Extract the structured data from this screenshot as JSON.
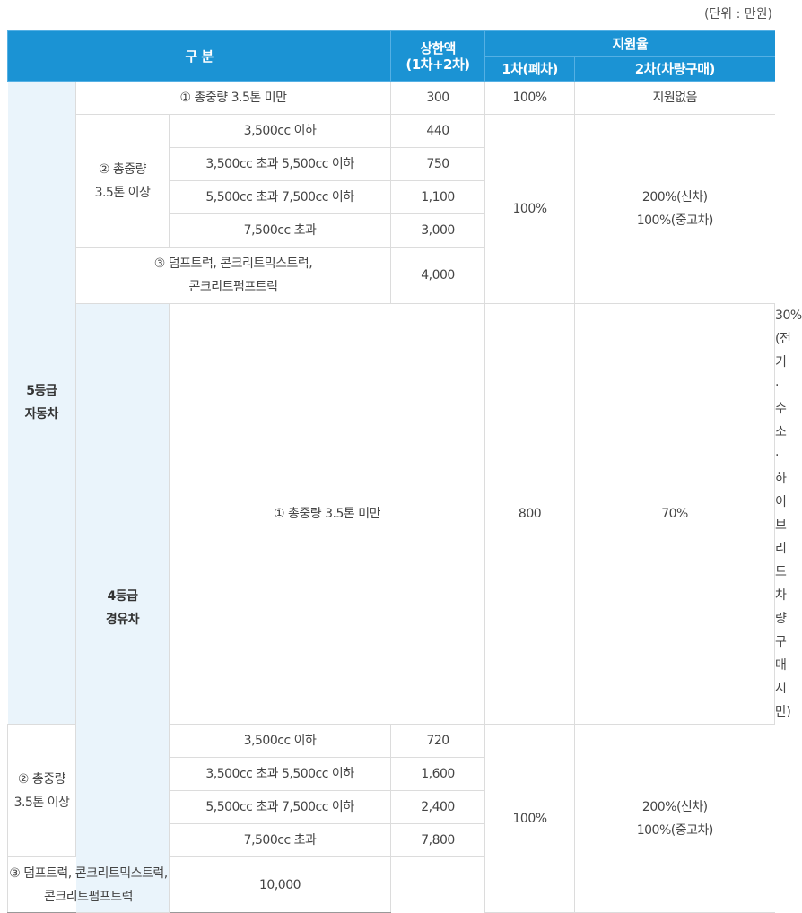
{
  "unit": "(단위 : 만원)",
  "header": {
    "category": "구 분",
    "limit": [
      "상한액",
      "(1차+2차)"
    ],
    "rate": "지원율",
    "rate_first": "1차(폐차)",
    "rate_second": "2차(차량구매)"
  },
  "groups": [
    {
      "grade": [
        "5등급",
        "자동차"
      ],
      "light": {
        "label": "① 총중량 3.5톤 미만",
        "limit": "300",
        "first": "100%",
        "second": [
          "지원없음"
        ]
      },
      "medium": {
        "label": [
          "② 총중량",
          "3.5톤 이상"
        ],
        "items": [
          {
            "displacement": "3,500cc 이하",
            "limit": "440"
          },
          {
            "displacement": "3,500cc 초과 5,500cc 이하",
            "limit": "750"
          },
          {
            "displacement": "5,500cc 초과 7,500cc 이하",
            "limit": "1,100"
          },
          {
            "displacement": "7,500cc 초과",
            "limit": "3,000"
          }
        ]
      },
      "special": {
        "label": [
          "③ 덤프트럭, 콘크리트믹스트럭,",
          "콘크리트펌프트럭"
        ],
        "limit": "4,000"
      },
      "first": "100%",
      "second": [
        "200%(신차)",
        "100%(중고차)"
      ]
    },
    {
      "grade": [
        "4등급",
        "경유차"
      ],
      "light": {
        "label": "① 총중량 3.5톤 미만",
        "limit": "800",
        "first": "70%",
        "second": [
          "30%",
          "(전기·수소·하이브리드",
          "차량 구매시만)"
        ]
      },
      "medium": {
        "label": [
          "② 총중량",
          "3.5톤 이상"
        ],
        "items": [
          {
            "displacement": "3,500cc 이하",
            "limit": "720"
          },
          {
            "displacement": "3,500cc 초과 5,500cc 이하",
            "limit": "1,600"
          },
          {
            "displacement": "5,500cc 초과 7,500cc 이하",
            "limit": "2,400"
          },
          {
            "displacement": "7,500cc 초과",
            "limit": "7,800"
          }
        ]
      },
      "special": {
        "label": [
          "③ 덤프트럭, 콘크리트믹스트럭,",
          "콘크리트펌프트럭"
        ],
        "limit": "10,000"
      },
      "first": "100%",
      "second": [
        "200%(신차)",
        "100%(중고차)"
      ]
    }
  ]
}
